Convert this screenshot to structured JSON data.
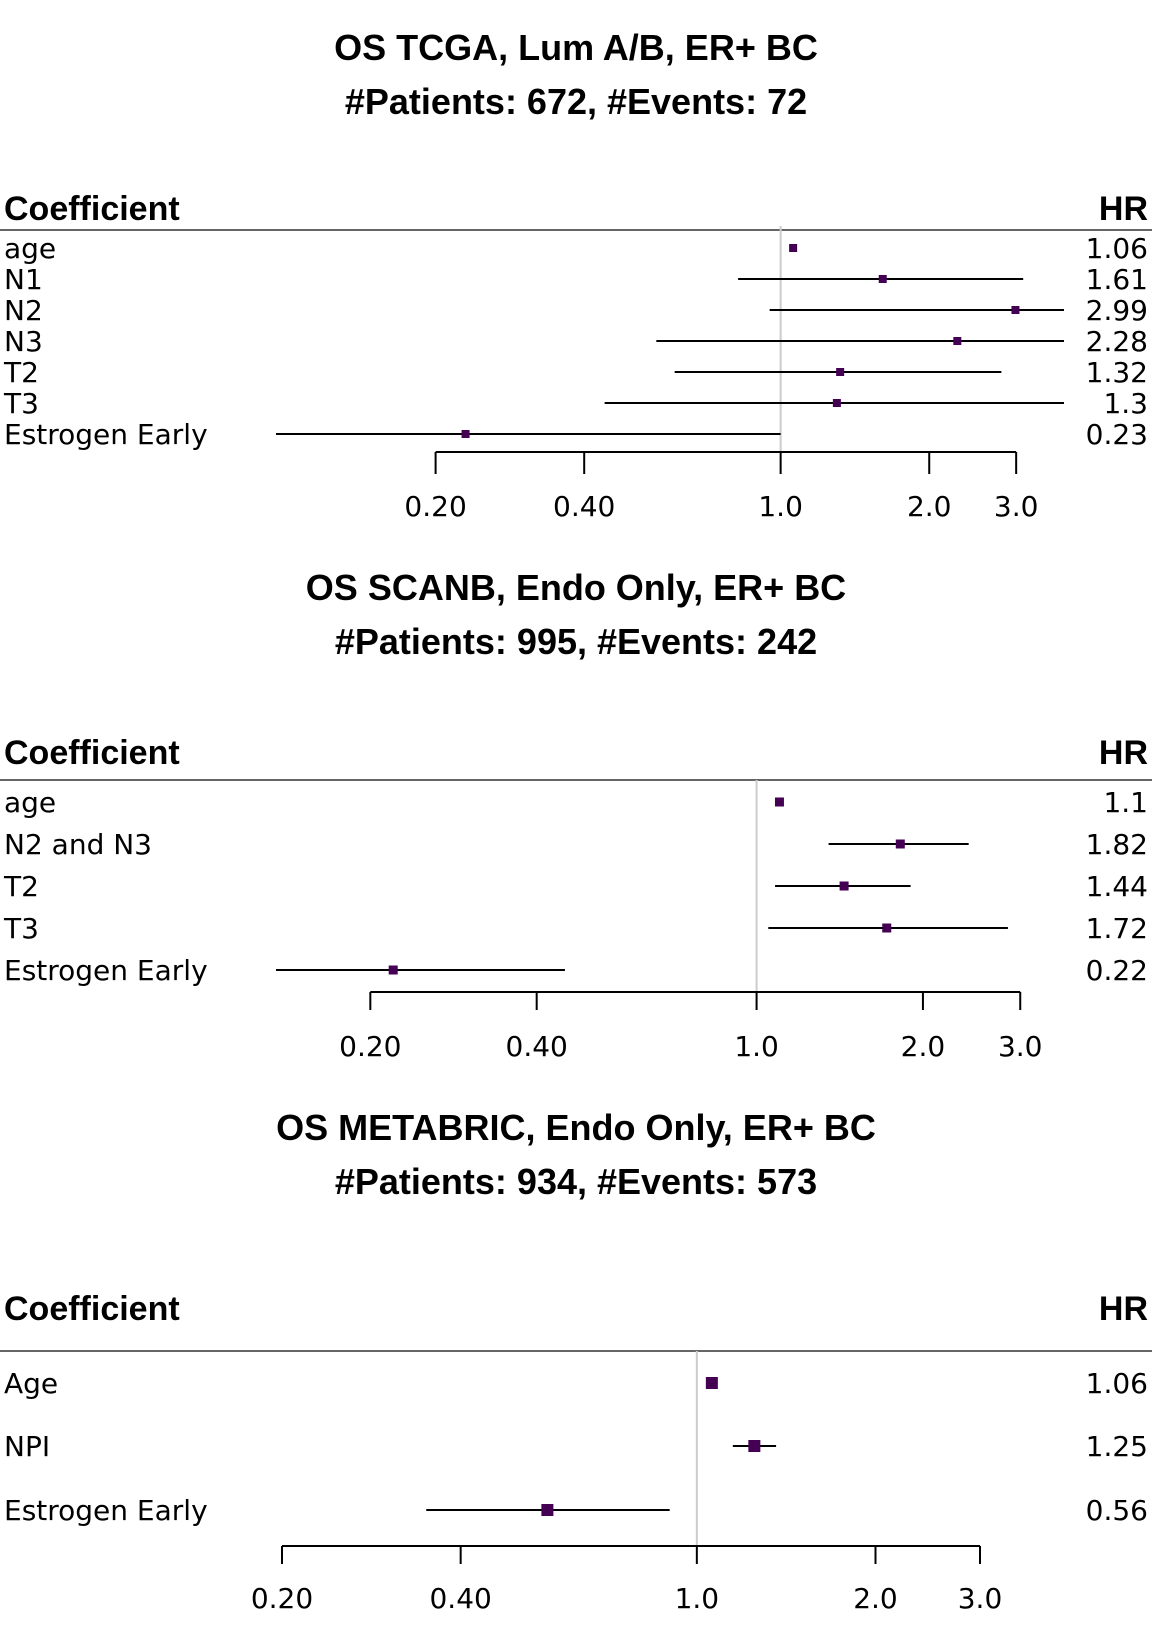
{
  "chart_data": [
    {
      "type": "forest",
      "title": "OS TCGA, Lum A/B, ER+ BC",
      "subtitle": "#Patients: 672, #Events: 72",
      "col_left": "Coefficient",
      "col_right": "HR",
      "log_scale": true,
      "xlim": [
        0.095,
        3.75
      ],
      "ticks": [
        0.2,
        0.4,
        1.0,
        2.0,
        3.0
      ],
      "tick_labels": [
        "0.20",
        "0.40",
        "1.0",
        "2.0",
        "3.0"
      ],
      "reference": 1.0,
      "rows": [
        {
          "label": "age",
          "hr": 1.06,
          "hr_text": "1.06",
          "lo": 1.06,
          "hi": 1.06
        },
        {
          "label": "N1",
          "hr": 1.61,
          "hr_text": "1.61",
          "lo": 0.82,
          "hi": 3.1
        },
        {
          "label": "N2",
          "hr": 2.99,
          "hr_text": "2.99",
          "lo": 0.95,
          "hi": 9.4
        },
        {
          "label": "N3",
          "hr": 2.28,
          "hr_text": "2.28",
          "lo": 0.56,
          "hi": 9.1
        },
        {
          "label": "T2",
          "hr": 1.32,
          "hr_text": "1.32",
          "lo": 0.61,
          "hi": 2.8
        },
        {
          "label": "T3",
          "hr": 1.3,
          "hr_text": "1.3",
          "lo": 0.44,
          "hi": 3.8
        },
        {
          "label": "Estrogen Early",
          "hr": 0.23,
          "hr_text": "0.23",
          "lo": 0.055,
          "hi": 1.0
        }
      ]
    },
    {
      "type": "forest",
      "title": "OS SCANB, Endo Only, ER+ BC",
      "subtitle": "#Patients: 995, #Events: 242",
      "col_left": "Coefficient",
      "col_right": "HR",
      "log_scale": true,
      "xlim": [
        0.135,
        3.6
      ],
      "ticks": [
        0.2,
        0.4,
        1.0,
        2.0,
        3.0
      ],
      "tick_labels": [
        "0.20",
        "0.40",
        "1.0",
        "2.0",
        "3.0"
      ],
      "reference": 1.0,
      "rows": [
        {
          "label": "age",
          "hr": 1.1,
          "hr_text": "1.1",
          "lo": 1.1,
          "hi": 1.1
        },
        {
          "label": "N2 and N3",
          "hr": 1.82,
          "hr_text": "1.82",
          "lo": 1.35,
          "hi": 2.42
        },
        {
          "label": "T2",
          "hr": 1.44,
          "hr_text": "1.44",
          "lo": 1.08,
          "hi": 1.9
        },
        {
          "label": "T3",
          "hr": 1.72,
          "hr_text": "1.72",
          "lo": 1.05,
          "hi": 2.85
        },
        {
          "label": "Estrogen Early",
          "hr": 0.22,
          "hr_text": "0.22",
          "lo": 0.1,
          "hi": 0.45
        }
      ]
    },
    {
      "type": "forest",
      "title": "OS METABRIC, Endo Only, ER+ BC",
      "subtitle": "#Patients: 934, #Events: 573",
      "col_left": "Coefficient",
      "col_right": "HR",
      "log_scale": true,
      "xlim": [
        0.2,
        3.6
      ],
      "ticks": [
        0.2,
        0.4,
        1.0,
        2.0,
        3.0
      ],
      "tick_labels": [
        "0.20",
        "0.40",
        "1.0",
        "2.0",
        "3.0"
      ],
      "reference": 1.0,
      "rows": [
        {
          "label": "Age",
          "hr": 1.06,
          "hr_text": "1.06",
          "lo": 1.05,
          "hi": 1.07
        },
        {
          "label": "NPI",
          "hr": 1.25,
          "hr_text": "1.25",
          "lo": 1.15,
          "hi": 1.36
        },
        {
          "label": "Estrogen Early",
          "hr": 0.56,
          "hr_text": "0.56",
          "lo": 0.35,
          "hi": 0.9
        }
      ]
    }
  ],
  "colors": {
    "point": "#440154",
    "line": "#000000",
    "reference": "#cccccc"
  }
}
